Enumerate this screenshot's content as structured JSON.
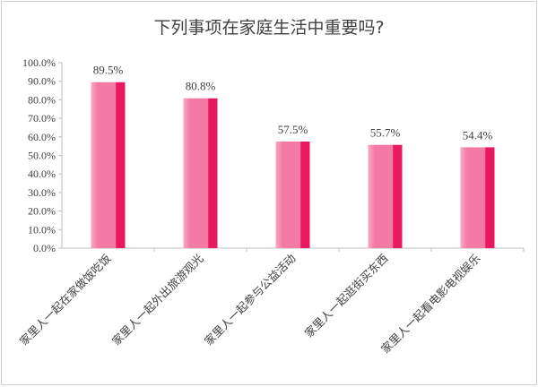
{
  "chart_data": {
    "type": "bar",
    "title": "下列事项在家庭生活中重要吗?",
    "categories": [
      "家里人一起在家做饭吃饭",
      "家里人一起外出旅游观光",
      "家里人一起参与公益活动",
      "家里人一起逛街买东西",
      "家里人一起看电影电视娱乐"
    ],
    "values": [
      89.5,
      80.8,
      57.5,
      55.7,
      54.4
    ],
    "data_labels": [
      "89.5%",
      "80.8%",
      "57.5%",
      "55.7%",
      "54.4%"
    ],
    "yticks": [
      "0.0%",
      "10.0%",
      "20.0%",
      "30.0%",
      "40.0%",
      "50.0%",
      "60.0%",
      "70.0%",
      "80.0%",
      "90.0%",
      "100.0%"
    ],
    "ylim": [
      0,
      100
    ],
    "grid": false,
    "legend": "none",
    "colors": {
      "bar_light": "#f37aa5",
      "bar_dark": "#e8195f",
      "axis": "#bfbfbf"
    }
  }
}
